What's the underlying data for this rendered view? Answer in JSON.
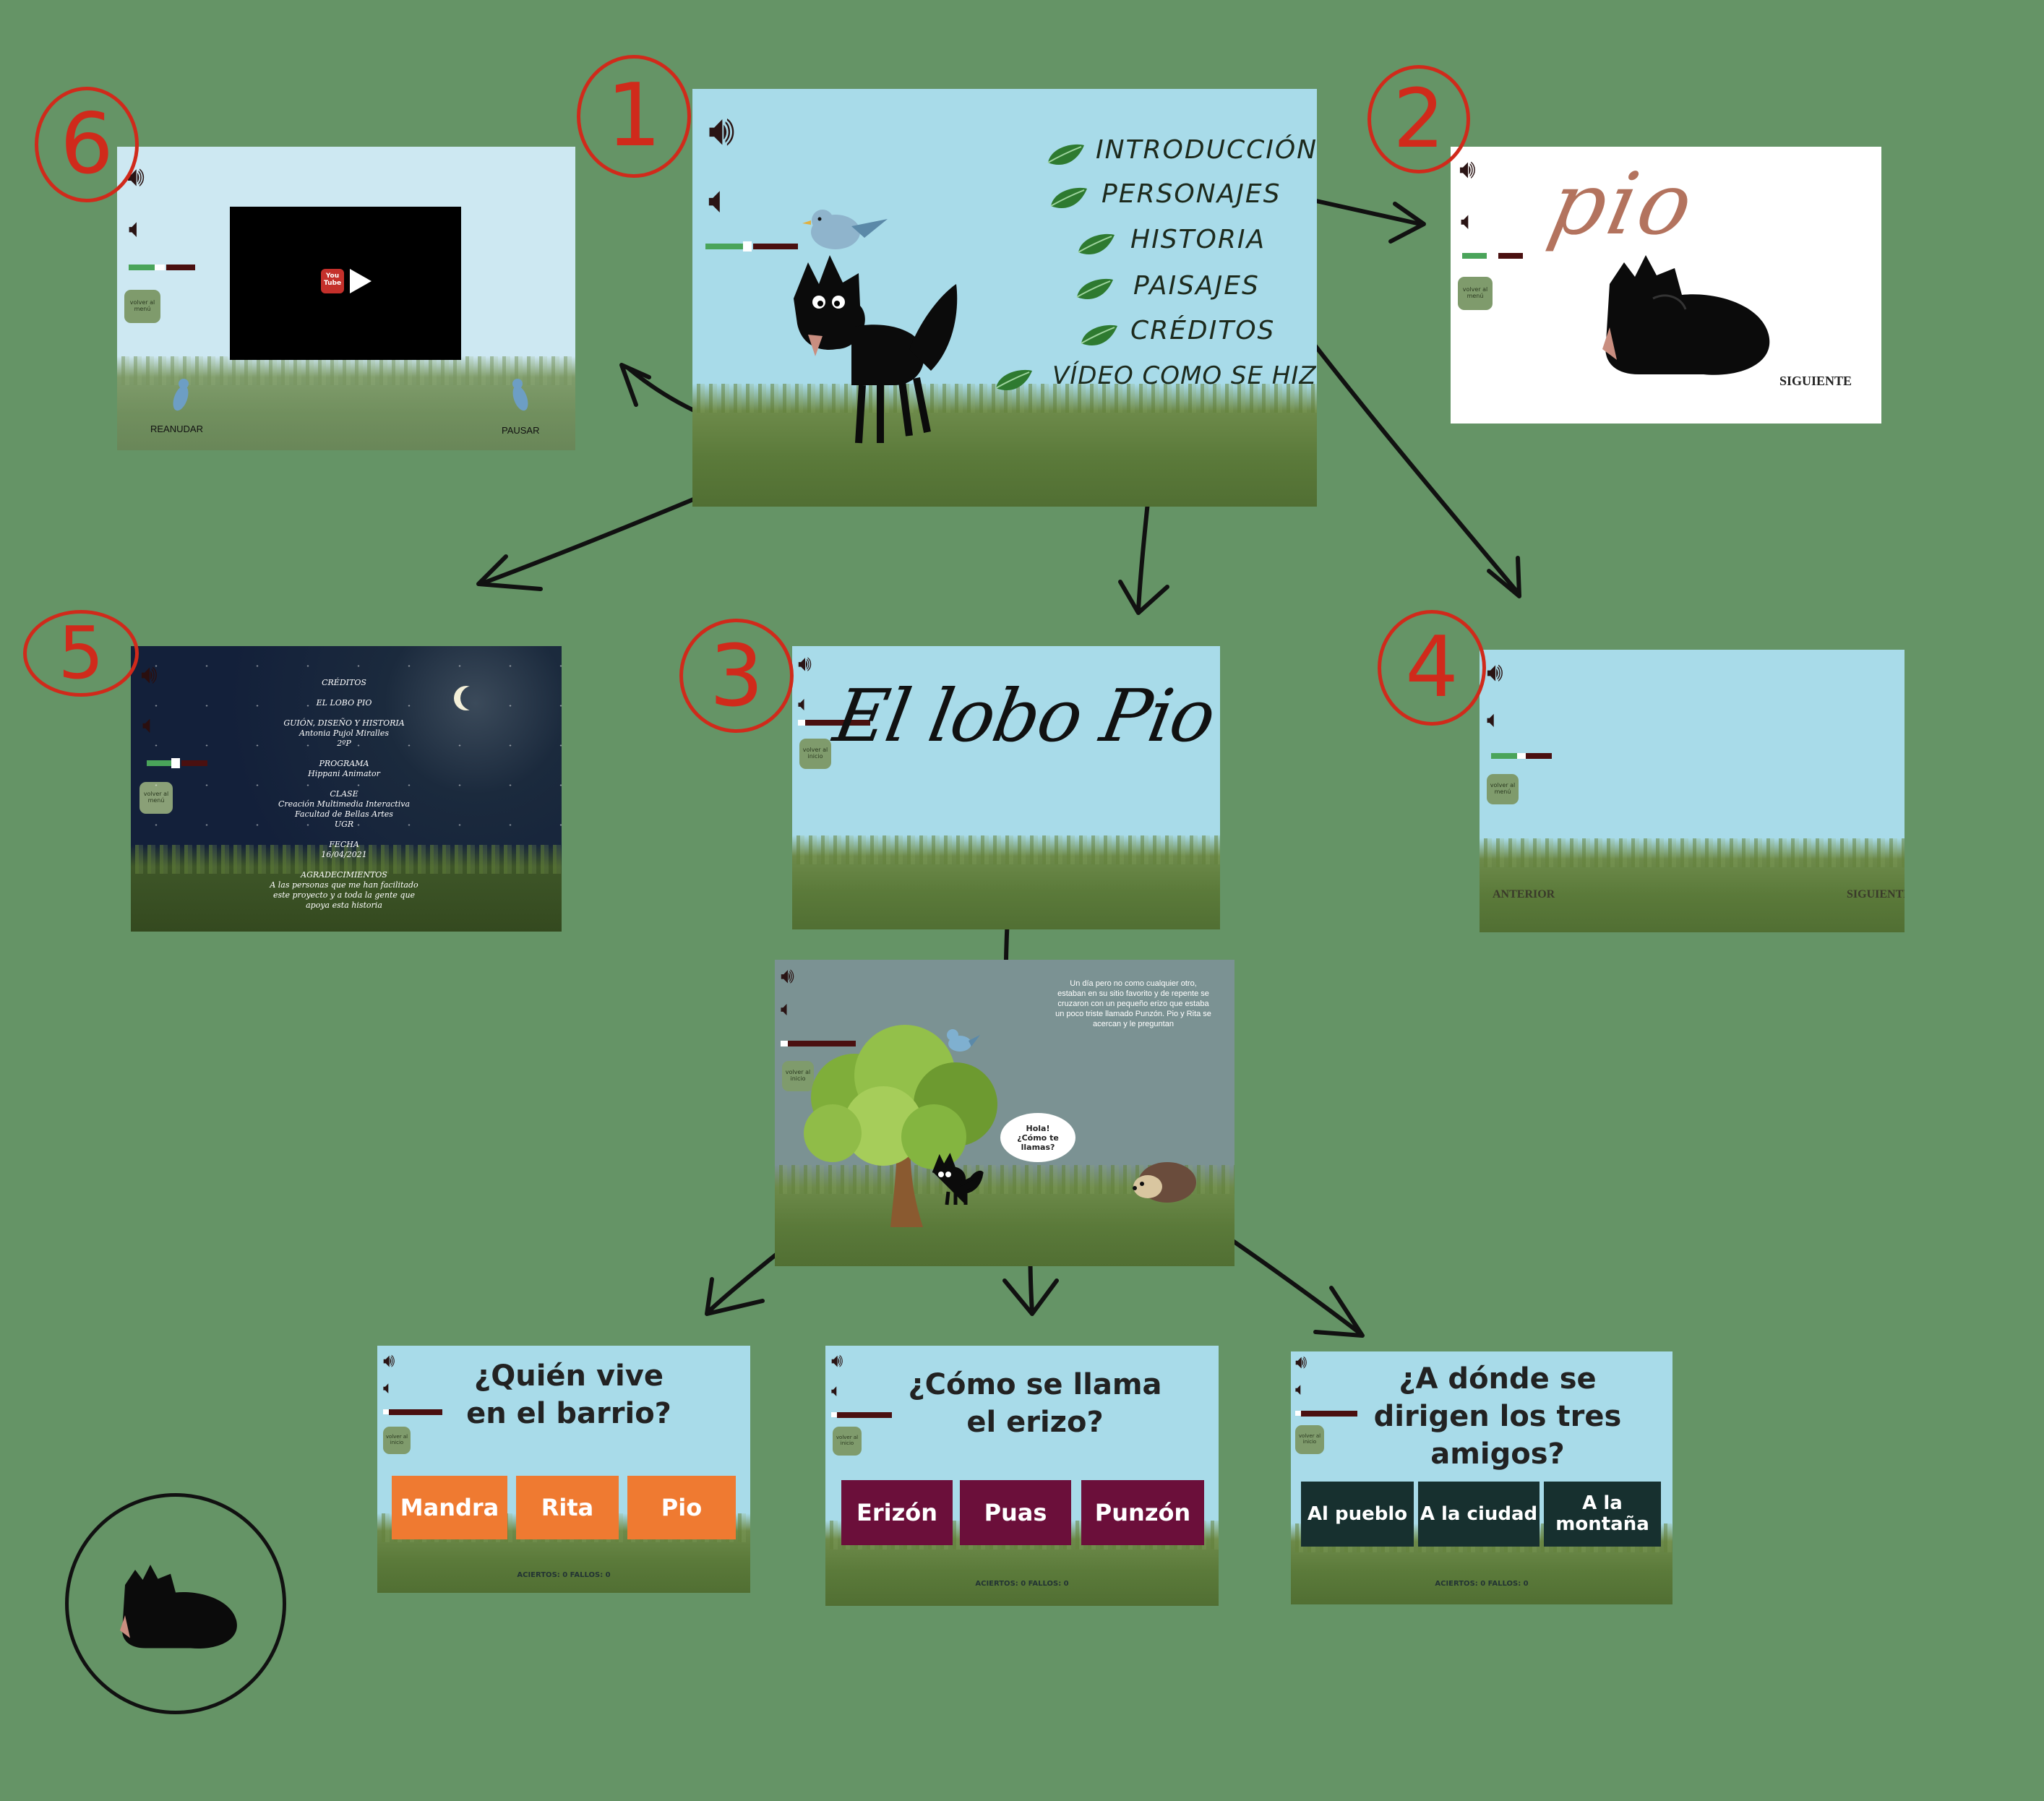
{
  "main_menu": {
    "items": [
      "INTRODUCCIÓN",
      "PERSONAJES",
      "HISTORIA",
      "PAISAJES",
      "CRÉDITOS",
      "VÍDEO COMO SE HIZO"
    ]
  },
  "video_screen": {
    "resume_label": "REANUDAR",
    "pause_label": "PAUSAR",
    "back_label": "volver al menú",
    "video_badge": "You Tube"
  },
  "character_screen": {
    "name": "pio",
    "next_label": "SIGUIENTE",
    "back_label": "volver al menú"
  },
  "credits_screen": {
    "back_label": "volver al menú",
    "lines": [
      "CRÉDITOS",
      "",
      "EL LOBO PIO",
      "",
      "GUIÓN, DISEÑO Y HISTORIA",
      "Antonia Pujol Miralles",
      "2ºP",
      "",
      "PROGRAMA",
      "Hippani Animator",
      "",
      "CLASE",
      "Creación Multimedia Interactiva",
      "Facultad de Bellas Artes",
      "UGR",
      "",
      "FECHA",
      "16/04/2021",
      "",
      "AGRADECIMIENTOS",
      "A las personas que me han facilitado",
      "este proyecto y a toda la gente que",
      "apoya esta historia"
    ]
  },
  "title_screen": {
    "title": "El lobo Pio",
    "back_label": "volver al inicio"
  },
  "landscape_screen": {
    "prev_label": "ANTERIOR",
    "next_label": "SIGUIENTE",
    "back_label": "volver al menú"
  },
  "story_screen": {
    "narration": "Un día pero no como cualquier otro, estaban en su sitio favorito y de repente se cruzaron con un pequeño erizo que estaba un poco triste llamado Punzón. Pio y Rita se acercan y le preguntan",
    "speech": "Hola! ¿Cómo te llamas?",
    "back_label": "volver al inicio"
  },
  "quizzes": [
    {
      "question": "¿Quién vive en el barrio?",
      "answers": [
        "Mandra",
        "Rita",
        "Pio"
      ],
      "color": "#ef7a31",
      "score": "ACIERTOS: 0 FALLOS: 0",
      "back_label": "volver al inicio"
    },
    {
      "question": "¿Cómo se llama el erizo?",
      "answers": [
        "Erizón",
        "Puas",
        "Punzón"
      ],
      "color": "#6b0f3a",
      "score": "ACIERTOS: 0 FALLOS: 0",
      "back_label": "volver al inicio"
    },
    {
      "question": "¿A dónde se dirigen los tres amigos?",
      "answers": [
        "Al pueblo",
        "A la ciudad",
        "A la montaña"
      ],
      "color": "#17302f",
      "score": "ACIERTOS: 0 FALLOS: 0",
      "back_label": "volver al inicio"
    }
  ],
  "step_numbers": [
    "1",
    "2",
    "3",
    "4",
    "5",
    "6"
  ],
  "colors": {
    "background": "#659466",
    "sky": "#a8dbe9",
    "annotation_red": "#d02a1b",
    "arrow": "#111111"
  }
}
